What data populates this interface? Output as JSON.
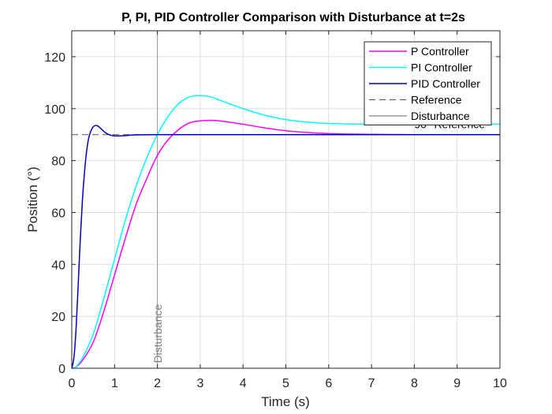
{
  "chart_data": {
    "type": "line",
    "title": "P, PI, PID Controller Comparison with Disturbance at t=2s",
    "xlabel": "Time (s)",
    "ylabel": "Position (°)",
    "xlim": [
      0,
      10
    ],
    "ylim": [
      0,
      130
    ],
    "xticks": [
      0,
      1,
      2,
      3,
      4,
      5,
      6,
      7,
      8,
      9,
      10
    ],
    "yticks": [
      0,
      20,
      40,
      60,
      80,
      100,
      120
    ],
    "grid": true,
    "legend_position": "top-right",
    "series": [
      {
        "name": "P Controller",
        "color": "#ff00ff",
        "style": "solid",
        "x": [
          0,
          0.1,
          0.25,
          0.5,
          0.75,
          1.0,
          1.25,
          1.5,
          1.75,
          2.0,
          2.25,
          2.5,
          2.75,
          3.0,
          3.25,
          3.5,
          4.0,
          4.5,
          5.0,
          5.5,
          6.0,
          6.5,
          7.0,
          8.0,
          9.0,
          10.0
        ],
        "values": [
          0,
          0.5,
          3,
          10,
          22,
          36,
          50,
          63,
          73,
          82,
          88,
          92,
          94.5,
          95.3,
          95.5,
          95.2,
          94,
          92.6,
          91.5,
          90.8,
          90.4,
          90.2,
          90.1,
          90,
          90,
          90
        ]
      },
      {
        "name": "PI Controller",
        "color": "#00ffff",
        "style": "solid",
        "x": [
          0,
          0.1,
          0.25,
          0.5,
          0.75,
          1.0,
          1.25,
          1.5,
          1.75,
          2.0,
          2.25,
          2.5,
          2.75,
          3.0,
          3.25,
          3.5,
          4.0,
          4.5,
          5.0,
          5.5,
          6.0,
          6.5,
          7.0,
          8.0,
          9.0,
          10.0
        ],
        "values": [
          0,
          0.6,
          4,
          13,
          27,
          42,
          57,
          70,
          81,
          90,
          97,
          102,
          104.5,
          105,
          104.5,
          103,
          100,
          97.5,
          95.8,
          94.8,
          94.3,
          94.1,
          94,
          94,
          94,
          94
        ]
      },
      {
        "name": "PID Controller",
        "color": "#0000bb",
        "style": "solid",
        "x": [
          0,
          0.05,
          0.1,
          0.15,
          0.2,
          0.25,
          0.3,
          0.35,
          0.4,
          0.45,
          0.5,
          0.55,
          0.6,
          0.65,
          0.7,
          0.8,
          0.9,
          1.0,
          1.1,
          1.25,
          1.5,
          2.0,
          3.0,
          5.0,
          10.0
        ],
        "values": [
          0,
          4,
          15,
          32,
          50,
          65,
          76,
          84,
          89,
          91.5,
          93,
          93.5,
          93.4,
          92.8,
          92,
          90.6,
          89.8,
          89.5,
          89.5,
          89.6,
          89.9,
          90,
          90,
          90,
          90
        ]
      },
      {
        "name": "Reference",
        "color": "#555555",
        "style": "dashed",
        "x": [
          0,
          10
        ],
        "values": [
          90,
          90
        ]
      }
    ],
    "vlines": [
      {
        "name": "Disturbance",
        "x": 2,
        "color": "#999999",
        "style": "solid"
      }
    ],
    "annotations": [
      {
        "text": "90° Reference",
        "x": 8.0,
        "y": 92.5,
        "color": "#000000"
      },
      {
        "text": "Disturbance",
        "x": 2.1,
        "y": 2,
        "color": "#808080",
        "rotate": -90
      }
    ]
  }
}
